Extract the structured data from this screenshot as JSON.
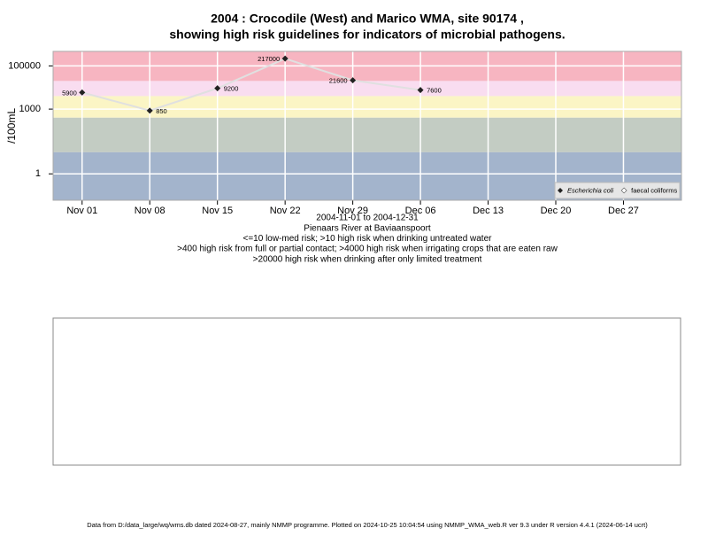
{
  "chart_data": {
    "type": "line",
    "title": "2004 : Crocodile (West) and Marico WMA, site 90174 ,",
    "title_line2": "showing high risk guidelines for indicators of microbial pathogens.",
    "y_label": "/100mL",
    "subtitle_lines": [
      "2004-11-01 to 2004-12-31",
      "Pienaars River at Baviaanspoort",
      "<=10 low-med risk; >10 high risk when drinking untreated water",
      ">400 high risk from full or partial contact; >4000 high risk when irrigating crops that are eaten raw",
      ">20000 high risk when drinking after only limited treatment"
    ],
    "footer": "Data from D:/data_large/wq/wms.db dated 2024-08-27, mainly NMMP programme. Plotted on 2024-10-25 10:04:54 using NMMP_WMA_web.R ver 9.3 under R version 4.4.1 (2024-06-14 ucrt)",
    "log_y": true,
    "grid": true,
    "legend_position": "bottom-right",
    "x": [
      "2004-11-01",
      "2004-11-08",
      "2004-11-15",
      "2004-11-22",
      "2004-11-29",
      "2004-12-06"
    ],
    "xlim": [
      "2004-10-29",
      "2005-01-02"
    ],
    "xticks": [
      {
        "value": "2004-11-01",
        "label": "Nov 01"
      },
      {
        "value": "2004-11-08",
        "label": "Nov 08"
      },
      {
        "value": "2004-11-15",
        "label": "Nov 15"
      },
      {
        "value": "2004-11-22",
        "label": "Nov 22"
      },
      {
        "value": "2004-11-29",
        "label": "Nov 29"
      },
      {
        "value": "2004-12-06",
        "label": "Dec 06"
      },
      {
        "value": "2004-12-13",
        "label": "Dec 13"
      },
      {
        "value": "2004-12-20",
        "label": "Dec 20"
      },
      {
        "value": "2004-12-27",
        "label": "Dec 27"
      }
    ],
    "ylim": [
      0.06,
      470000
    ],
    "yticks": [
      1,
      1000,
      100000
    ],
    "bands": [
      {
        "from": 20000,
        "to": 470000,
        "color": "#f7b5c1"
      },
      {
        "from": 4000,
        "to": 20000,
        "color": "#f9ddf0"
      },
      {
        "from": 400,
        "to": 4000,
        "color": "#fbf5c5"
      },
      {
        "from": 10,
        "to": 400,
        "color": "#c3ccc3"
      },
      {
        "from": 0.06,
        "to": 10,
        "color": "#a3b4cc"
      }
    ],
    "series": [
      {
        "name": "Escherichia coli",
        "color": "#222222",
        "line_color": "#e0e0e0",
        "values": [
          5900,
          850,
          9200,
          217000,
          21600,
          7600
        ]
      },
      {
        "name": "faecal coliforms",
        "color": "#ffffff",
        "values": [
          null,
          null,
          null,
          null,
          null,
          null
        ]
      }
    ]
  }
}
